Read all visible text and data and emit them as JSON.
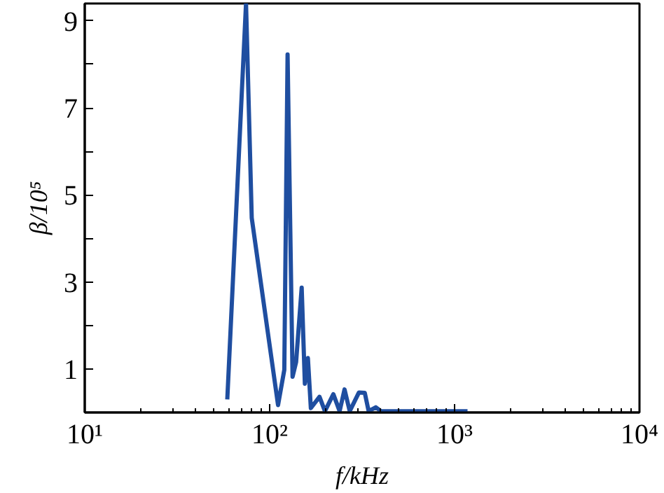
{
  "chart_data": {
    "type": "line",
    "xlabel": "f/kHz",
    "ylabel": "β/10⁵",
    "log": "x",
    "xlim": [
      10,
      10000
    ],
    "xticks": [
      {
        "value": 10,
        "label": "10¹"
      },
      {
        "value": 100,
        "label": "10²"
      },
      {
        "value": 1000,
        "label": "10³"
      },
      {
        "value": 10000,
        "label": "10⁴"
      }
    ],
    "ylim": [
      0,
      9.4
    ],
    "yticks": [
      1,
      {
        "value": 2,
        "label": null
      },
      3,
      {
        "value": 4,
        "label": null
      },
      5,
      {
        "value": 6,
        "label": null
      },
      7,
      {
        "value": 8,
        "label": null
      },
      9
    ],
    "grid": false,
    "series": [
      {
        "color": "#1f4ea0",
        "x": [
          59,
          74.5,
          80,
          111,
          120,
          125,
          133,
          139,
          149,
          155,
          161,
          167,
          186,
          199,
          221,
          239,
          254,
          271,
          304,
          327,
          343,
          375,
          400,
          1175
        ],
        "values": [
          0.3,
          9.4,
          4.47,
          0.17,
          0.98,
          8.23,
          0.82,
          1.16,
          2.87,
          0.66,
          1.25,
          0.1,
          0.36,
          0.03,
          0.42,
          0.03,
          0.53,
          0.03,
          0.46,
          0.45,
          0.03,
          0.12,
          0.03,
          0.03
        ]
      }
    ]
  }
}
